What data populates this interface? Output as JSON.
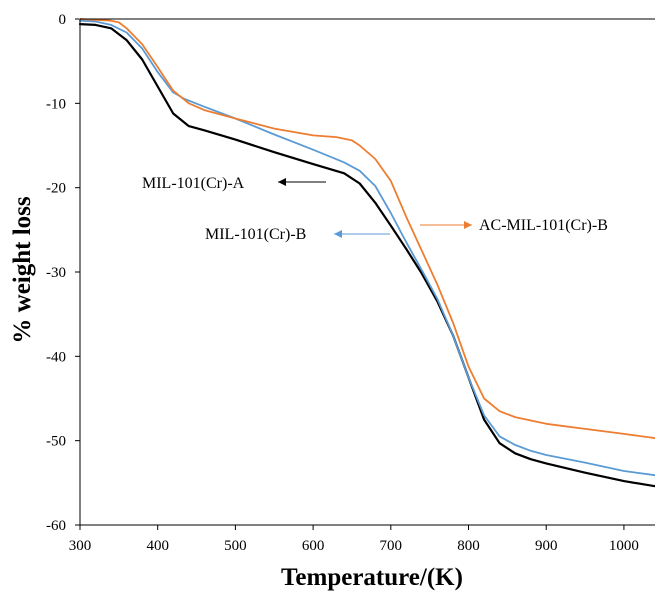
{
  "chart_data": {
    "type": "line",
    "xlabel": "Temperature/(K)",
    "ylabel": "% weight loss",
    "xlim": [
      300,
      1040
    ],
    "ylim": [
      -60,
      0
    ],
    "xticks": [
      300,
      400,
      500,
      600,
      700,
      800,
      900,
      1000
    ],
    "yticks": [
      0,
      -10,
      -20,
      -30,
      -40,
      -50,
      -60
    ],
    "grid": false,
    "legend": "annotations with arrows",
    "series": [
      {
        "name": "MIL-101(Cr)-A",
        "color": "#000000",
        "x": [
          300,
          320,
          340,
          360,
          380,
          400,
          420,
          440,
          460,
          500,
          550,
          600,
          640,
          660,
          680,
          700,
          720,
          740,
          760,
          780,
          800,
          820,
          840,
          860,
          880,
          900,
          950,
          1000,
          1040
        ],
        "y": [
          -0.6,
          -0.7,
          -1.1,
          -2.5,
          -4.8,
          -8.0,
          -11.2,
          -12.7,
          -13.2,
          -14.3,
          -15.8,
          -17.2,
          -18.3,
          -19.5,
          -21.8,
          -24.5,
          -27.3,
          -30.2,
          -33.5,
          -37.5,
          -42.5,
          -47.5,
          -50.3,
          -51.5,
          -52.2,
          -52.7,
          -53.8,
          -54.8,
          -55.4
        ]
      },
      {
        "name": "MIL-101(Cr)-B",
        "color": "#5b9bd5",
        "x": [
          300,
          320,
          340,
          360,
          380,
          400,
          420,
          435,
          460,
          500,
          550,
          600,
          640,
          660,
          680,
          700,
          720,
          740,
          760,
          780,
          800,
          820,
          840,
          860,
          880,
          900,
          950,
          1000,
          1040
        ],
        "y": [
          -0.2,
          -0.3,
          -0.7,
          -1.6,
          -3.5,
          -6.3,
          -8.7,
          -9.5,
          -10.4,
          -11.8,
          -13.7,
          -15.5,
          -17.0,
          -18.0,
          -19.8,
          -23.0,
          -26.5,
          -29.8,
          -33.2,
          -37.5,
          -42.5,
          -47.0,
          -49.5,
          -50.5,
          -51.2,
          -51.7,
          -52.6,
          -53.6,
          -54.1
        ]
      },
      {
        "name": "AC-MIL-101(Cr)-B",
        "color": "#ed7d31",
        "x": [
          300,
          320,
          340,
          350,
          360,
          380,
          400,
          420,
          440,
          460,
          500,
          550,
          600,
          630,
          650,
          660,
          680,
          700,
          720,
          740,
          760,
          780,
          800,
          820,
          840,
          860,
          900,
          950,
          1000,
          1040
        ],
        "y": [
          0.0,
          -0.1,
          -0.2,
          -0.4,
          -1.1,
          -3.0,
          -5.7,
          -8.5,
          -10.0,
          -10.8,
          -11.8,
          -13.0,
          -13.8,
          -14.0,
          -14.4,
          -15.0,
          -16.6,
          -19.2,
          -23.5,
          -27.5,
          -31.5,
          -36.0,
          -41.2,
          -45.0,
          -46.5,
          -47.2,
          -48.0,
          -48.6,
          -49.2,
          -49.7
        ]
      }
    ],
    "annotations": [
      {
        "text": "MIL-101(Cr)-A",
        "series": "MIL-101(Cr)-A"
      },
      {
        "text": "MIL-101(Cr)-B",
        "series": "MIL-101(Cr)-B"
      },
      {
        "text": "AC-MIL-101(Cr)-B",
        "series": "AC-MIL-101(Cr)-B"
      }
    ]
  }
}
